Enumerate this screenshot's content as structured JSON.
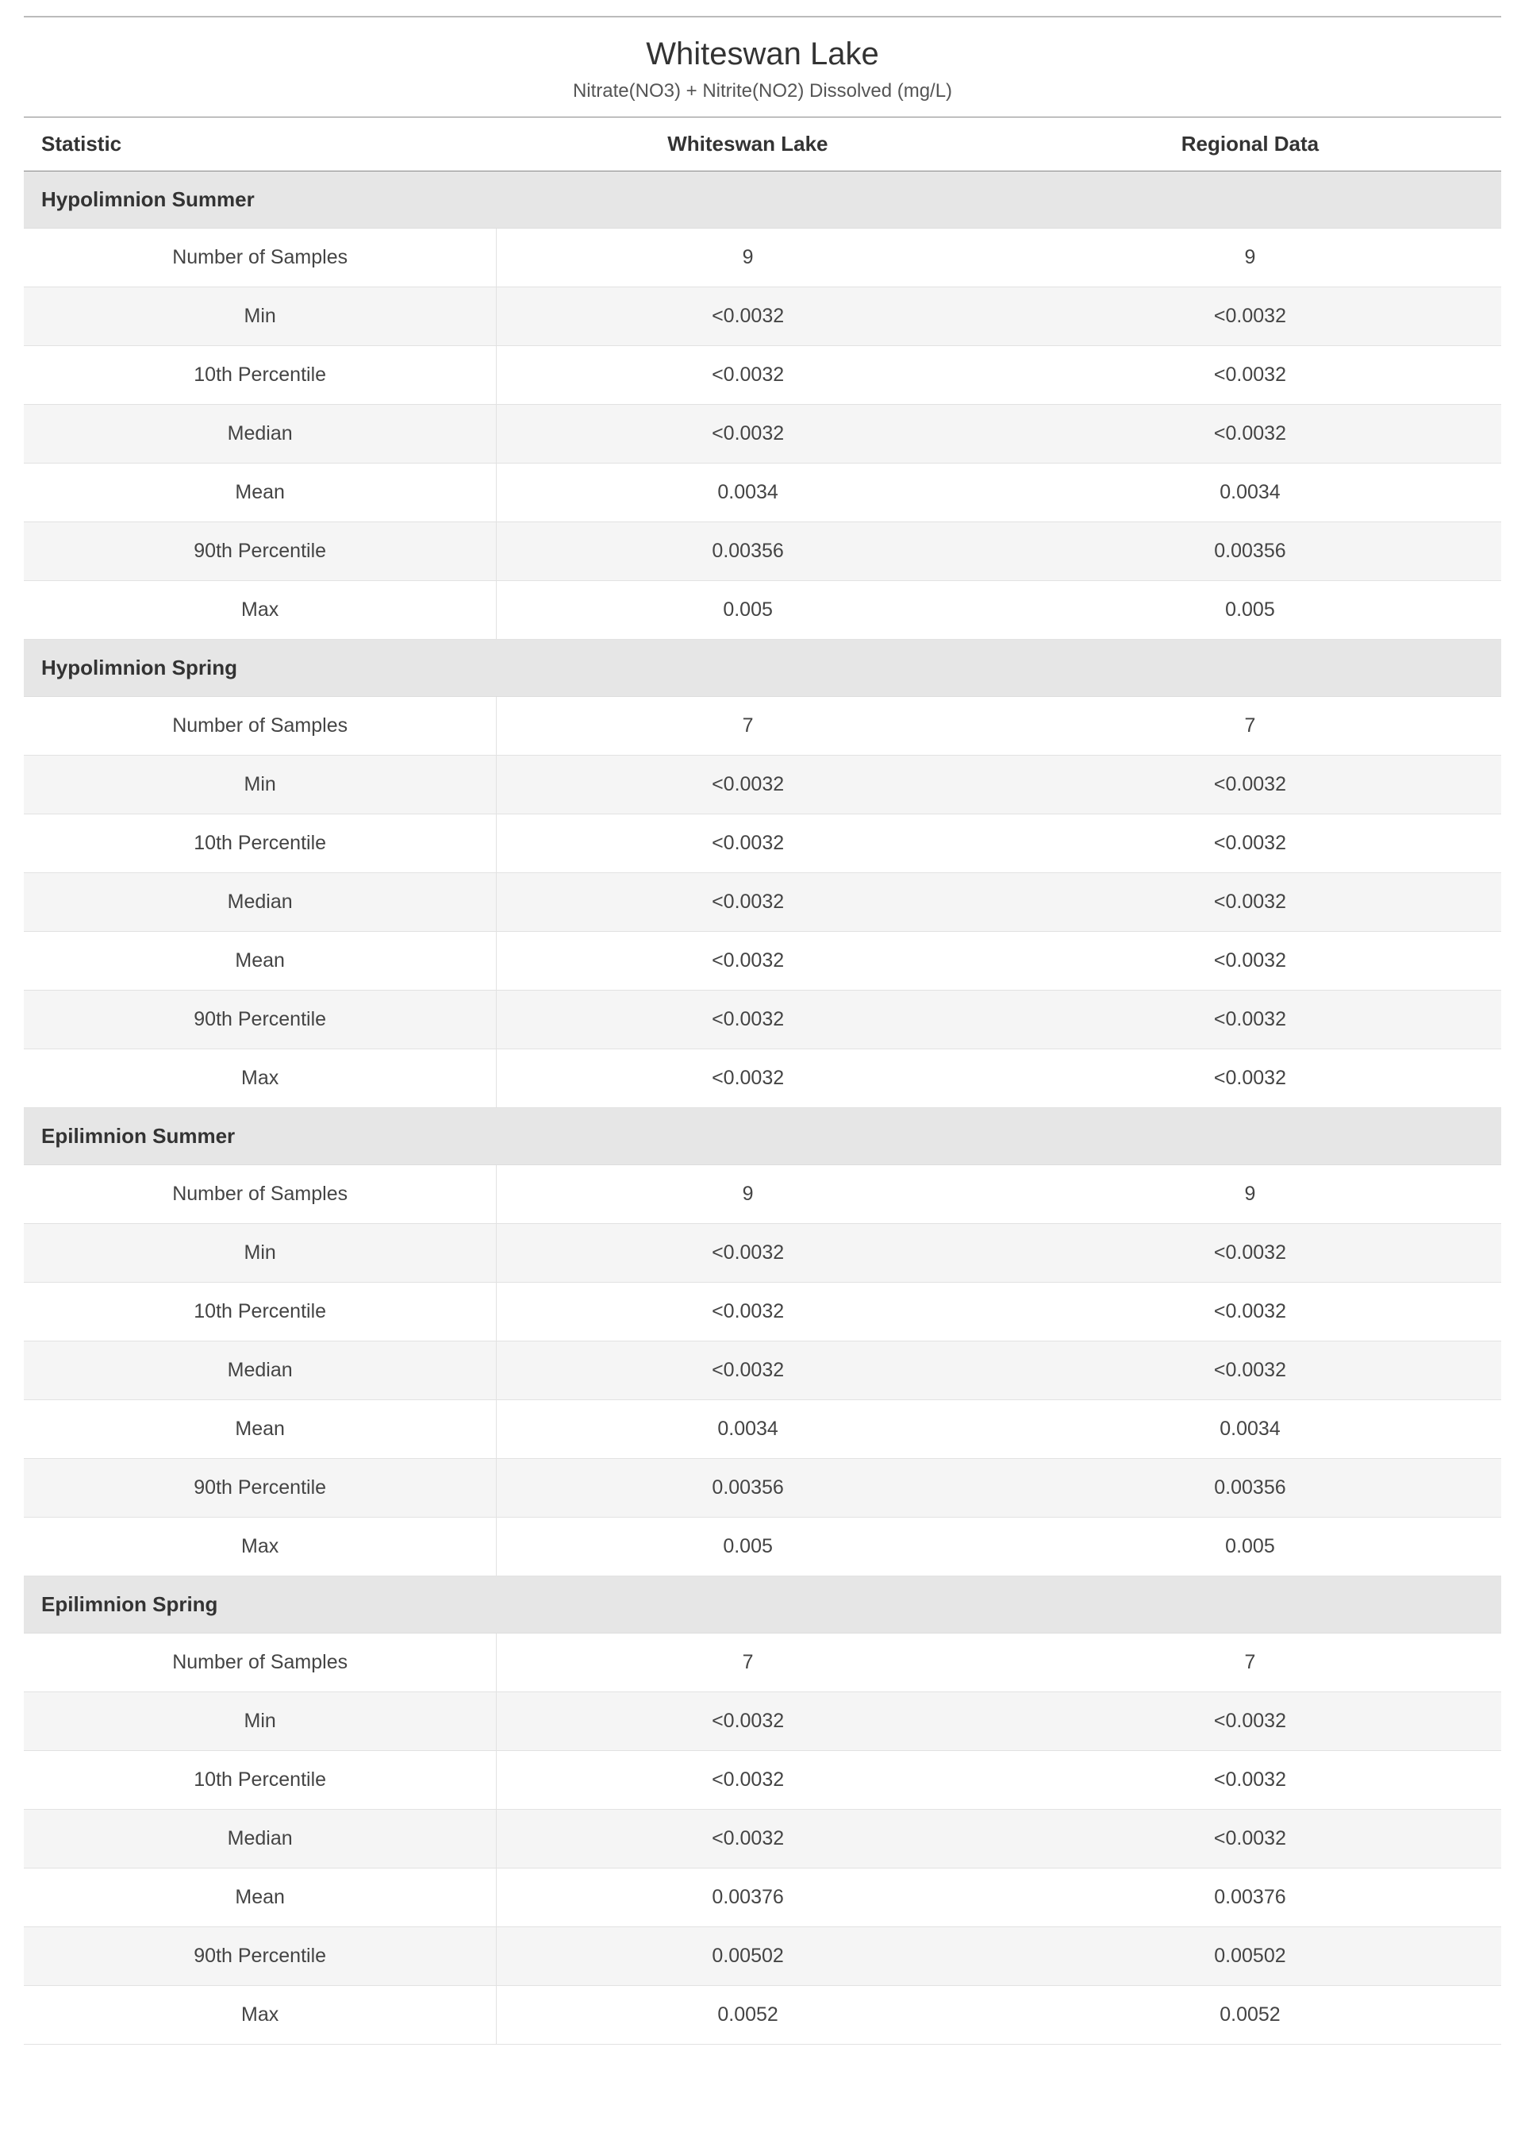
{
  "styling": {
    "font_family": "Segoe UI, Arial, sans-serif",
    "title_fontsize_pt": 30,
    "subtitle_fontsize_pt": 18,
    "header_fontsize_pt": 20,
    "cell_fontsize_pt": 19,
    "background_color": "#ffffff",
    "group_header_bg": "#e6e6e6",
    "stripe_bg": "#f5f5f5",
    "border_color": "#e2e2e2",
    "top_rule_color": "#bbbbbb",
    "header_rule_color": "#888888",
    "text_color": "#333333",
    "cell_text_color": "#444444",
    "column_widths_pct": [
      32,
      34,
      34
    ],
    "column_alignment": [
      "left-header/center-cells",
      "center",
      "center"
    ]
  },
  "title": "Whiteswan Lake",
  "subtitle": "Nitrate(NO3) + Nitrite(NO2) Dissolved (mg/L)",
  "columns": [
    "Statistic",
    "Whiteswan Lake",
    "Regional Data"
  ],
  "groups": [
    {
      "name": "Hypolimnion Summer",
      "rows": [
        {
          "stat": "Number of Samples",
          "lake": "9",
          "regional": "9"
        },
        {
          "stat": "Min",
          "lake": "<0.0032",
          "regional": "<0.0032"
        },
        {
          "stat": "10th Percentile",
          "lake": "<0.0032",
          "regional": "<0.0032"
        },
        {
          "stat": "Median",
          "lake": "<0.0032",
          "regional": "<0.0032"
        },
        {
          "stat": "Mean",
          "lake": "0.0034",
          "regional": "0.0034"
        },
        {
          "stat": "90th Percentile",
          "lake": "0.00356",
          "regional": "0.00356"
        },
        {
          "stat": "Max",
          "lake": "0.005",
          "regional": "0.005"
        }
      ]
    },
    {
      "name": "Hypolimnion Spring",
      "rows": [
        {
          "stat": "Number of Samples",
          "lake": "7",
          "regional": "7"
        },
        {
          "stat": "Min",
          "lake": "<0.0032",
          "regional": "<0.0032"
        },
        {
          "stat": "10th Percentile",
          "lake": "<0.0032",
          "regional": "<0.0032"
        },
        {
          "stat": "Median",
          "lake": "<0.0032",
          "regional": "<0.0032"
        },
        {
          "stat": "Mean",
          "lake": "<0.0032",
          "regional": "<0.0032"
        },
        {
          "stat": "90th Percentile",
          "lake": "<0.0032",
          "regional": "<0.0032"
        },
        {
          "stat": "Max",
          "lake": "<0.0032",
          "regional": "<0.0032"
        }
      ]
    },
    {
      "name": "Epilimnion Summer",
      "rows": [
        {
          "stat": "Number of Samples",
          "lake": "9",
          "regional": "9"
        },
        {
          "stat": "Min",
          "lake": "<0.0032",
          "regional": "<0.0032"
        },
        {
          "stat": "10th Percentile",
          "lake": "<0.0032",
          "regional": "<0.0032"
        },
        {
          "stat": "Median",
          "lake": "<0.0032",
          "regional": "<0.0032"
        },
        {
          "stat": "Mean",
          "lake": "0.0034",
          "regional": "0.0034"
        },
        {
          "stat": "90th Percentile",
          "lake": "0.00356",
          "regional": "0.00356"
        },
        {
          "stat": "Max",
          "lake": "0.005",
          "regional": "0.005"
        }
      ]
    },
    {
      "name": "Epilimnion Spring",
      "rows": [
        {
          "stat": "Number of Samples",
          "lake": "7",
          "regional": "7"
        },
        {
          "stat": "Min",
          "lake": "<0.0032",
          "regional": "<0.0032"
        },
        {
          "stat": "10th Percentile",
          "lake": "<0.0032",
          "regional": "<0.0032"
        },
        {
          "stat": "Median",
          "lake": "<0.0032",
          "regional": "<0.0032"
        },
        {
          "stat": "Mean",
          "lake": "0.00376",
          "regional": "0.00376"
        },
        {
          "stat": "90th Percentile",
          "lake": "0.00502",
          "regional": "0.00502"
        },
        {
          "stat": "Max",
          "lake": "0.0052",
          "regional": "0.0052"
        }
      ]
    }
  ]
}
